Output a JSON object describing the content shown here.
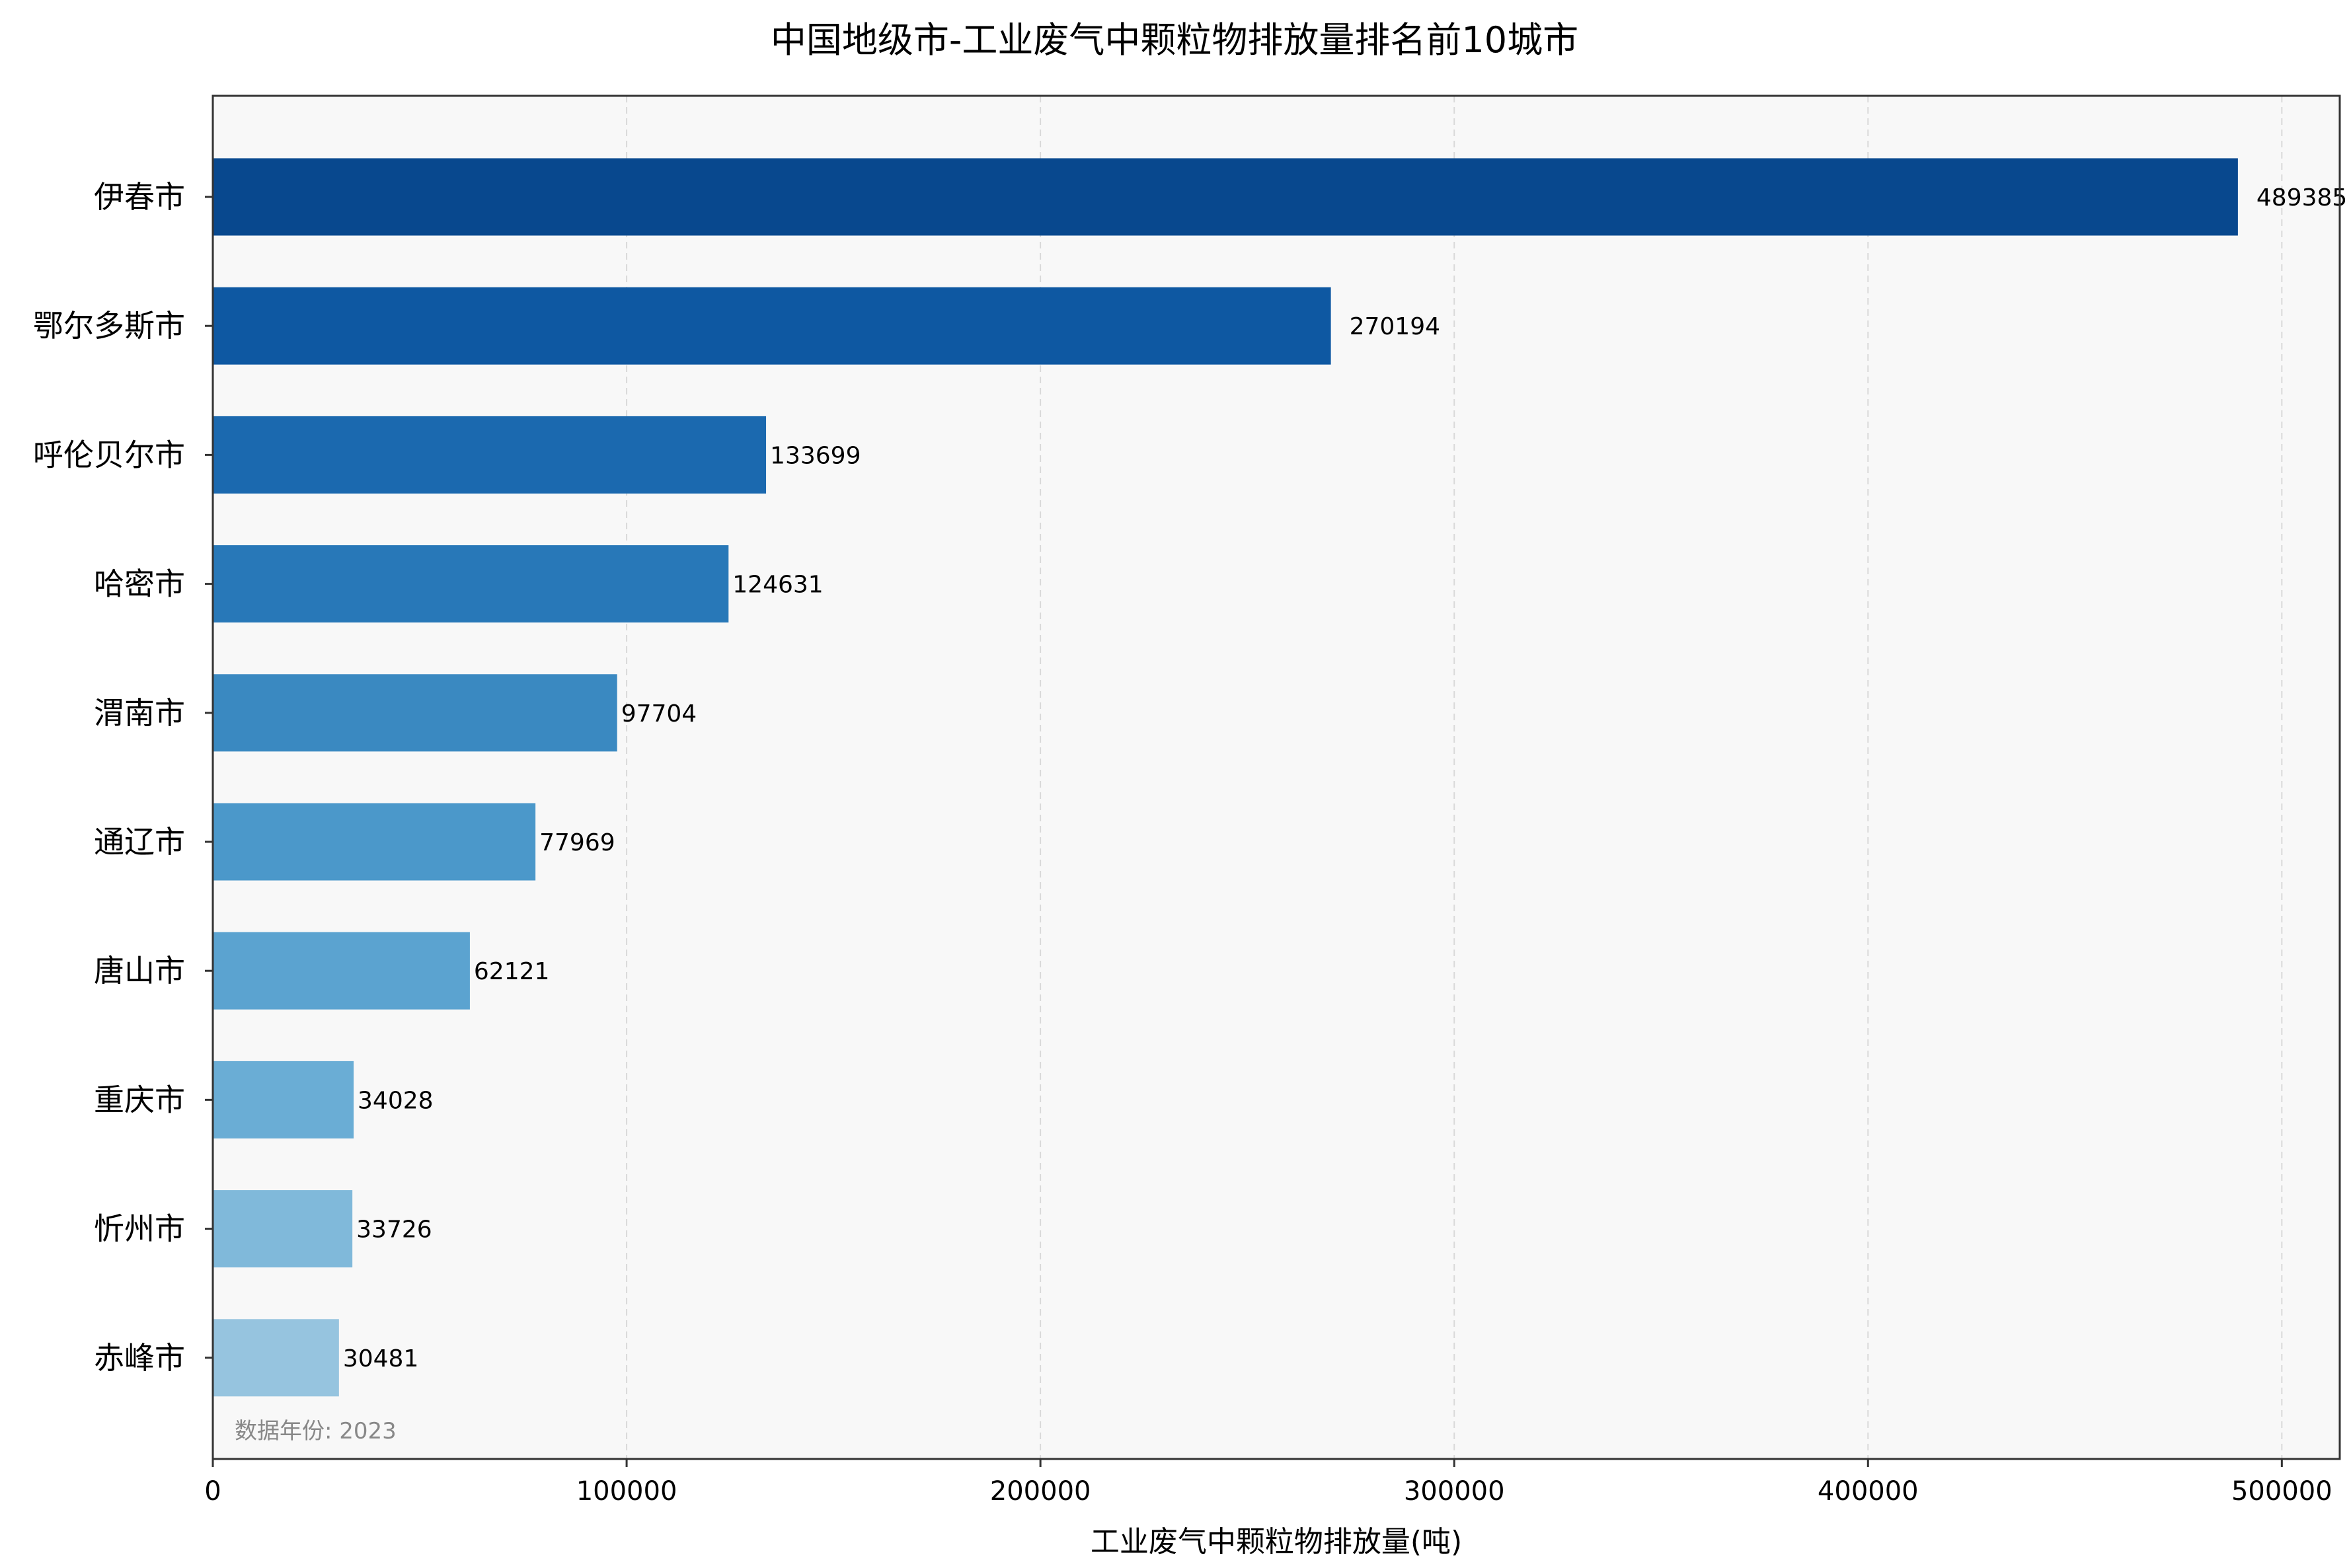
{
  "chart_data": {
    "type": "bar",
    "orientation": "horizontal",
    "title": "中国地级市-工业废气中颗粒物排放量排名前10城市",
    "xlabel": "工业废气中颗粒物排放量(吨)",
    "ylabel": "",
    "xlim": [
      0,
      514000
    ],
    "x_ticks": [
      "0",
      "100000",
      "200000",
      "300000",
      "400000",
      "500000"
    ],
    "x_tick_values": [
      0,
      100000,
      200000,
      300000,
      400000,
      500000
    ],
    "grid": "vertical-dashed",
    "categories": [
      "伊春市",
      "鄂尔多斯市",
      "呼伦贝尔市",
      "哈密市",
      "渭南市",
      "通辽市",
      "唐山市",
      "重庆市",
      "忻州市",
      "赤峰市"
    ],
    "values": [
      489385,
      270194,
      133699,
      124631,
      97704,
      77969,
      62121,
      34028,
      33726,
      30481
    ],
    "value_labels": [
      "489385",
      "270194",
      "133699",
      "124631",
      "97704",
      "77969",
      "62121",
      "34028",
      "33726",
      "30481"
    ],
    "bar_colors": [
      "#08488e",
      "#0e58a2",
      "#1b69af",
      "#2878b8",
      "#3a89c1",
      "#4b98ca",
      "#5ba3d0",
      "#6aadd5",
      "#80b9da",
      "#96c4df"
    ],
    "annotation": "数据年份: 2023"
  },
  "colors": {
    "plot_background": "#f8f8f8",
    "axis": "#333333",
    "grid": "#d9d9d9",
    "annotation": "#888888",
    "text": "#000000"
  }
}
